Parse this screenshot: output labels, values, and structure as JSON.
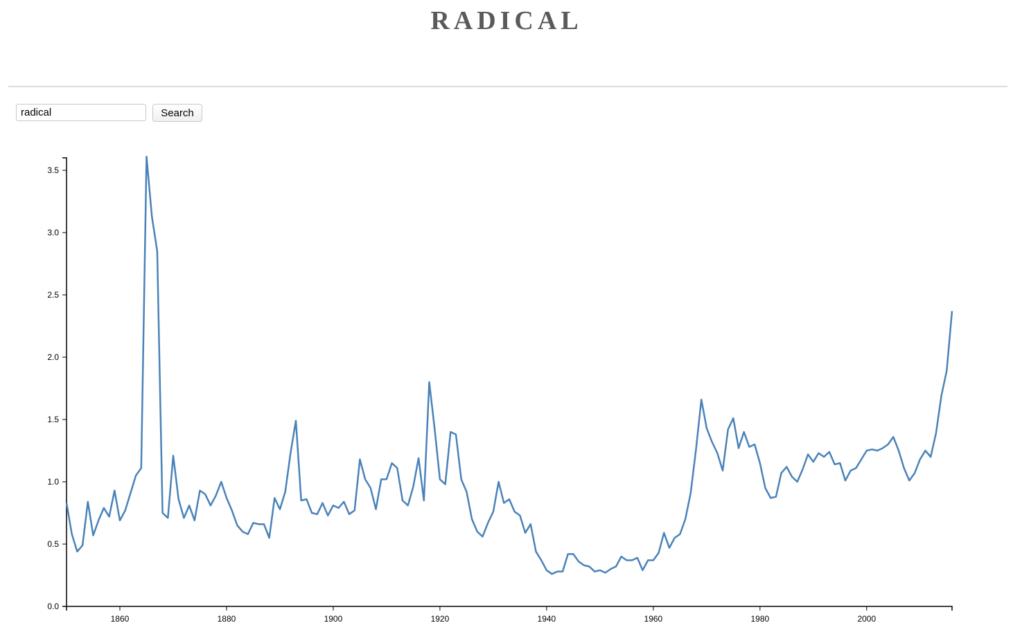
{
  "header": {
    "title": "RADICAL"
  },
  "search": {
    "value": "radical",
    "button_label": "Search"
  },
  "chart_data": {
    "type": "line",
    "title": "",
    "xlabel": "",
    "ylabel": "",
    "xlim": [
      1850,
      2016
    ],
    "ylim": [
      0,
      3.6
    ],
    "x_ticks": [
      1860,
      1880,
      1900,
      1920,
      1940,
      1960,
      1980,
      2000
    ],
    "y_ticks": [
      0.0,
      0.5,
      1.0,
      1.5,
      2.0,
      2.5,
      3.0,
      3.5
    ],
    "grid": false,
    "color": "#4a82b8",
    "series": [
      {
        "x": [
          1850,
          1851,
          1852,
          1853,
          1854,
          1855,
          1856,
          1857,
          1858,
          1859,
          1860,
          1861,
          1862,
          1863,
          1864,
          1865,
          1866,
          1867,
          1868,
          1869,
          1870,
          1871,
          1872,
          1873,
          1874,
          1875,
          1876,
          1877,
          1878,
          1879,
          1880,
          1881,
          1882,
          1883,
          1884,
          1885,
          1886,
          1887,
          1888,
          1889,
          1890,
          1891,
          1892,
          1893,
          1894,
          1895,
          1896,
          1897,
          1898,
          1899,
          1900,
          1901,
          1902,
          1903,
          1904,
          1905,
          1906,
          1907,
          1908,
          1909,
          1910,
          1911,
          1912,
          1913,
          1914,
          1915,
          1916,
          1917,
          1918,
          1919,
          1920,
          1921,
          1922,
          1923,
          1924,
          1925,
          1926,
          1927,
          1928,
          1929,
          1930,
          1931,
          1932,
          1933,
          1934,
          1935,
          1936,
          1937,
          1938,
          1939,
          1940,
          1941,
          1942,
          1943,
          1944,
          1945,
          1946,
          1947,
          1948,
          1949,
          1950,
          1951,
          1952,
          1953,
          1954,
          1955,
          1956,
          1957,
          1958,
          1959,
          1960,
          1961,
          1962,
          1963,
          1964,
          1965,
          1966,
          1967,
          1968,
          1969,
          1970,
          1971,
          1972,
          1973,
          1974,
          1975,
          1976,
          1977,
          1978,
          1979,
          1980,
          1981,
          1982,
          1983,
          1984,
          1985,
          1986,
          1987,
          1988,
          1989,
          1990,
          1991,
          1992,
          1993,
          1994,
          1995,
          1996,
          1997,
          1998,
          1999,
          2000,
          2001,
          2002,
          2003,
          2004,
          2005,
          2006,
          2007,
          2008,
          2009,
          2010,
          2011,
          2012,
          2013,
          2014,
          2015,
          2016
        ],
        "values": [
          0.83,
          0.58,
          0.44,
          0.49,
          0.84,
          0.57,
          0.69,
          0.79,
          0.72,
          0.93,
          0.69,
          0.77,
          0.91,
          1.05,
          1.11,
          3.61,
          3.13,
          2.85,
          0.75,
          0.71,
          1.21,
          0.86,
          0.71,
          0.81,
          0.69,
          0.93,
          0.9,
          0.81,
          0.89,
          1.0,
          0.87,
          0.77,
          0.65,
          0.6,
          0.58,
          0.67,
          0.66,
          0.66,
          0.55,
          0.87,
          0.78,
          0.92,
          1.23,
          1.49,
          0.85,
          0.86,
          0.75,
          0.74,
          0.83,
          0.73,
          0.81,
          0.79,
          0.84,
          0.74,
          0.77,
          1.18,
          1.02,
          0.95,
          0.78,
          1.02,
          1.02,
          1.15,
          1.11,
          0.85,
          0.81,
          0.96,
          1.19,
          0.85,
          1.8,
          1.43,
          1.02,
          0.98,
          1.4,
          1.38,
          1.02,
          0.92,
          0.7,
          0.6,
          0.56,
          0.67,
          0.76,
          1.0,
          0.83,
          0.86,
          0.76,
          0.73,
          0.59,
          0.66,
          0.44,
          0.37,
          0.29,
          0.26,
          0.28,
          0.28,
          0.42,
          0.42,
          0.36,
          0.33,
          0.32,
          0.28,
          0.29,
          0.27,
          0.3,
          0.32,
          0.4,
          0.37,
          0.37,
          0.39,
          0.29,
          0.37,
          0.37,
          0.43,
          0.59,
          0.47,
          0.55,
          0.58,
          0.7,
          0.91,
          1.26,
          1.66,
          1.43,
          1.32,
          1.23,
          1.09,
          1.42,
          1.51,
          1.27,
          1.4,
          1.28,
          1.3,
          1.15,
          0.95,
          0.87,
          0.88,
          1.07,
          1.12,
          1.04,
          1.0,
          1.1,
          1.22,
          1.16,
          1.23,
          1.2,
          1.24,
          1.14,
          1.15,
          1.01,
          1.09,
          1.11,
          1.18,
          1.25,
          1.26,
          1.25,
          1.27,
          1.3,
          1.36,
          1.25,
          1.11,
          1.01,
          1.07,
          1.18,
          1.25,
          1.2,
          1.39,
          1.69,
          1.89,
          2.37
        ]
      }
    ]
  }
}
